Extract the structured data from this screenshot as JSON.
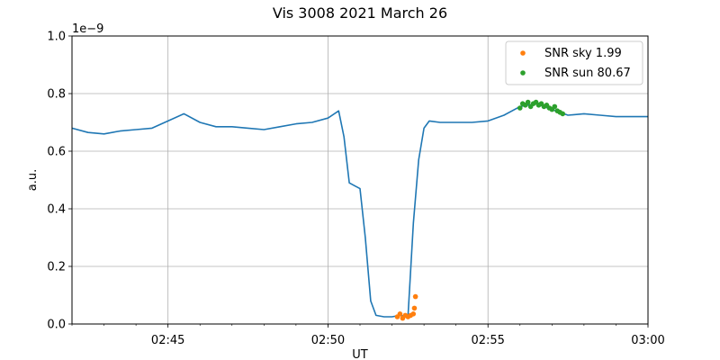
{
  "chart_data": {
    "type": "scatter",
    "title": "Vis 3008 2021 March 26",
    "xlabel": "UT",
    "ylabel": "a.u.",
    "y_scale_label": "1e−9",
    "xlim": [
      "02:42",
      "03:00"
    ],
    "ylim": [
      0,
      1.0
    ],
    "x_ticks": [
      "02:45",
      "02:50",
      "02:55",
      "03:00"
    ],
    "y_ticks": [
      "0.0",
      "0.2",
      "0.4",
      "0.6",
      "0.8",
      "1.0"
    ],
    "grid": true,
    "legend_position": "top-right",
    "colors": {
      "signal": "#1f77b4",
      "sky": "#ff7f0e",
      "sun": "#2ca02c",
      "grid": "#b0b0b0"
    },
    "series": [
      {
        "kind": "line",
        "x": [
          "02:42:00",
          "02:42:30",
          "02:43:00",
          "02:43:30",
          "02:44:00",
          "02:44:30",
          "02:45:00",
          "02:45:30",
          "02:46:00",
          "02:46:30",
          "02:47:00",
          "02:47:30",
          "02:48:00",
          "02:48:30",
          "02:49:00",
          "02:49:30",
          "02:50:00",
          "02:50:20",
          "02:50:30",
          "02:50:40",
          "02:50:50",
          "02:51:00",
          "02:51:10",
          "02:51:20",
          "02:51:30",
          "02:51:45",
          "02:52:00",
          "02:52:15",
          "02:52:30",
          "02:52:40",
          "02:52:50",
          "02:53:00",
          "02:53:10",
          "02:53:30",
          "02:54:00",
          "02:54:30",
          "02:55:00",
          "02:55:30",
          "02:56:00",
          "02:56:30",
          "02:57:00",
          "02:57:30",
          "02:58:00",
          "02:58:30",
          "02:59:00",
          "02:59:30",
          "03:00:00"
        ],
        "y": [
          0.68,
          0.665,
          0.66,
          0.67,
          0.675,
          0.68,
          0.705,
          0.73,
          0.7,
          0.685,
          0.685,
          0.68,
          0.675,
          0.685,
          0.695,
          0.7,
          0.715,
          0.74,
          0.65,
          0.49,
          0.48,
          0.47,
          0.3,
          0.08,
          0.03,
          0.025,
          0.025,
          0.03,
          0.025,
          0.35,
          0.57,
          0.68,
          0.705,
          0.7,
          0.7,
          0.7,
          0.705,
          0.725,
          0.755,
          0.765,
          0.745,
          0.725,
          0.73,
          0.725,
          0.72,
          0.72,
          0.72
        ]
      },
      {
        "name": "SNR sky 1.99",
        "kind": "scatter",
        "x": [
          "02:52:10",
          "02:52:15",
          "02:52:20",
          "02:52:25",
          "02:52:30",
          "02:52:35",
          "02:52:40",
          "02:52:42",
          "02:52:44"
        ],
        "y": [
          0.025,
          0.035,
          0.02,
          0.03,
          0.025,
          0.03,
          0.035,
          0.055,
          0.095
        ]
      },
      {
        "name": "SNR sun 80.67",
        "kind": "scatter",
        "x": [
          "02:56:00",
          "02:56:05",
          "02:56:10",
          "02:56:15",
          "02:56:20",
          "02:56:25",
          "02:56:30",
          "02:56:35",
          "02:56:40",
          "02:56:45",
          "02:56:50",
          "02:56:55",
          "02:57:00",
          "02:57:05",
          "02:57:10",
          "02:57:15",
          "02:57:20"
        ],
        "y": [
          0.75,
          0.765,
          0.76,
          0.77,
          0.755,
          0.765,
          0.77,
          0.76,
          0.765,
          0.755,
          0.76,
          0.75,
          0.745,
          0.755,
          0.74,
          0.735,
          0.73
        ]
      }
    ]
  }
}
